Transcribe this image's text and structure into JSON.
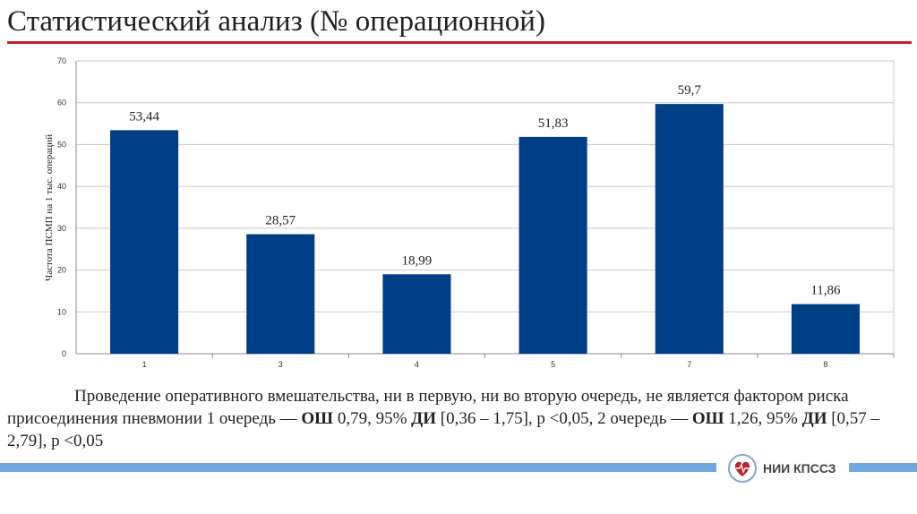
{
  "title": "Статистический анализ (№ операционной)",
  "colors": {
    "bar": "#003f87",
    "accent": "#c0202a",
    "footer": "#6fa8dc"
  },
  "chart_data": {
    "type": "bar",
    "categories": [
      "1",
      "3",
      "4",
      "5",
      "7",
      "8"
    ],
    "values": [
      53.44,
      28.57,
      18.99,
      51.83,
      59.7,
      11.86
    ],
    "data_labels": [
      "53,44",
      "28,57",
      "18,99",
      "51,83",
      "59,7",
      "11,86"
    ],
    "title": "",
    "xlabel": "",
    "ylabel": "Частота ПСМП на 1 тыс. операций",
    "ylim": [
      0,
      70
    ],
    "yticks": [
      0,
      10,
      20,
      30,
      40,
      50,
      60,
      70
    ],
    "grid": true,
    "legend": "none"
  },
  "caption": {
    "part1": "Проведение оперативного вмешательства, ни в первую, ни во вторую очередь, не является фактором риска присоединения пневмонии 1 очередь — ",
    "or1_label": "ОШ",
    "part2": " 0,79, 95% ",
    "ci1_label": "ДИ",
    "part3": " [0,36 – 1,75], р <0,05, 2 очередь — ",
    "or2_label": "ОШ",
    "part4": " 1,26, 95% ",
    "ci2_label": "ДИ",
    "part5": " [0,57 – 2,79], р <0,05"
  },
  "logo": {
    "text": "НИИ КПССЗ",
    "icon": "heart-logo-icon"
  }
}
